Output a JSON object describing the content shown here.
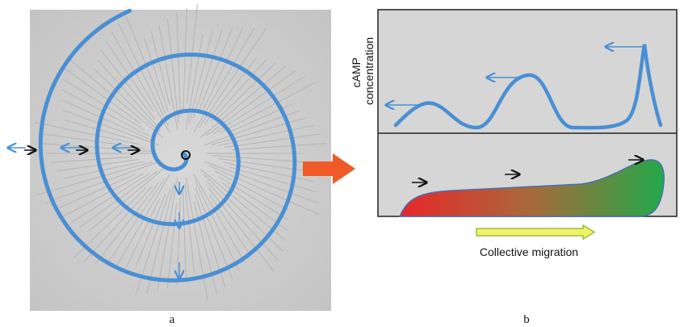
{
  "panel_a": {
    "label": "a"
  },
  "panel_b": {
    "label": "b",
    "y_label": [
      "cAMP",
      "concentration"
    ],
    "caption": "Collective migration"
  }
}
